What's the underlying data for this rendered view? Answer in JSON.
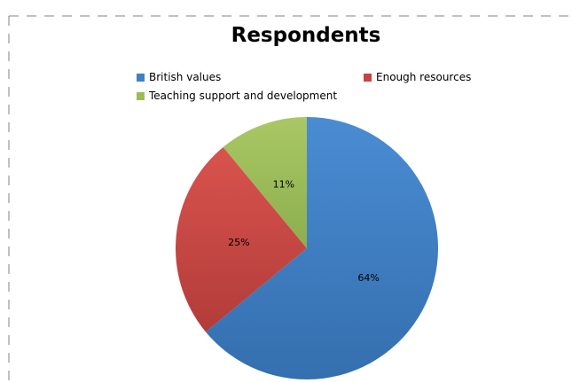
{
  "chart_data": {
    "type": "pie",
    "title": "Respondents",
    "slices": [
      {
        "name": "British values",
        "value": 64,
        "label": "64%",
        "color": "#3F7FC4"
      },
      {
        "name": "Enough resources",
        "value": 25,
        "label": "25%",
        "color": "#C8433F"
      },
      {
        "name": "Teaching support and development",
        "value": 11,
        "label": "11%",
        "color": "#9BBB59"
      }
    ],
    "legend_position": "top"
  }
}
